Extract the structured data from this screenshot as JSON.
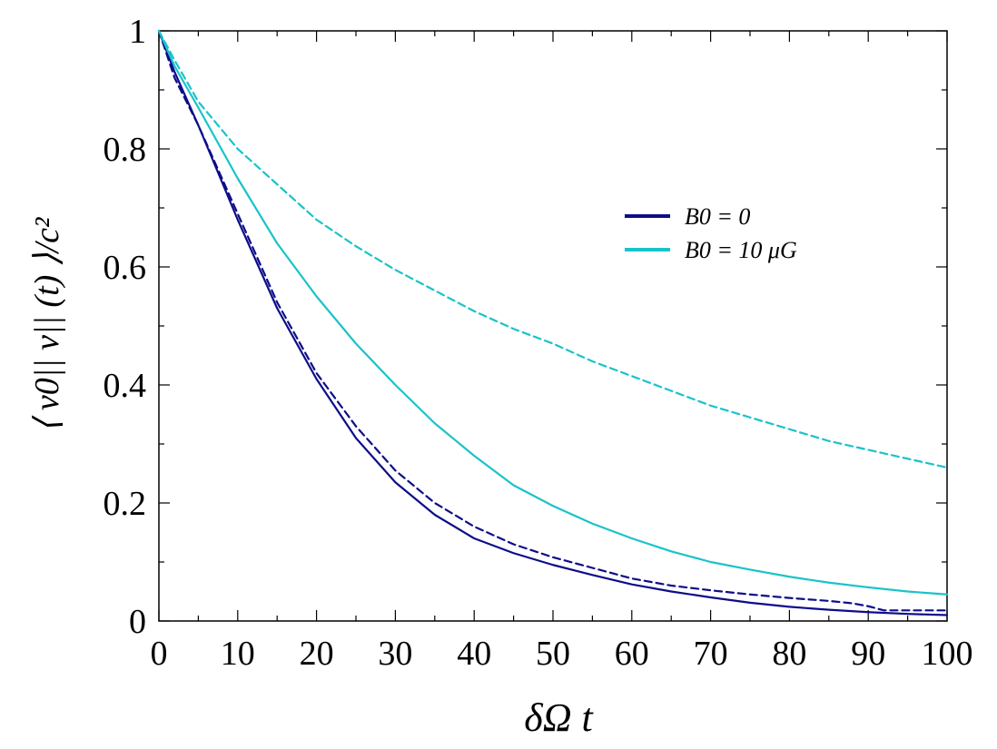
{
  "chart_data": {
    "type": "line",
    "xlabel": "δΩ t",
    "ylabel": "⟨ v0|| v|| (t) ⟩/c²",
    "xlim": [
      0,
      100
    ],
    "ylim": [
      0,
      1
    ],
    "xticks": [
      0,
      10,
      20,
      30,
      40,
      50,
      60,
      70,
      80,
      90,
      100
    ],
    "yticks": [
      0,
      0.2,
      0.4,
      0.6,
      0.8,
      1
    ],
    "ytick_labels": [
      "0",
      "0.2",
      "0.4",
      "0.6",
      "0.8",
      "1"
    ],
    "grid": false,
    "legend_position": "upper-right",
    "legend": [
      {
        "label": "B0 = 0",
        "color": "#0d0d8a"
      },
      {
        "label": "B0 = 10 μG",
        "color": "#19c3c9"
      }
    ],
    "series": [
      {
        "legend_label": "B0 = 0",
        "style": "solid",
        "color": "#0d0d8a",
        "x": [
          0,
          2,
          5,
          10,
          15,
          20,
          25,
          30,
          35,
          40,
          45,
          50,
          55,
          60,
          65,
          70,
          75,
          80,
          85,
          90,
          95,
          100
        ],
        "y": [
          1.0,
          0.93,
          0.84,
          0.68,
          0.53,
          0.41,
          0.31,
          0.235,
          0.18,
          0.14,
          0.115,
          0.095,
          0.078,
          0.062,
          0.05,
          0.04,
          0.031,
          0.024,
          0.019,
          0.015,
          0.012,
          0.01
        ]
      },
      {
        "legend_label": "B0 = 0",
        "style": "dashed",
        "color": "#0d0d8a",
        "x": [
          0,
          2,
          5,
          10,
          15,
          20,
          25,
          30,
          35,
          40,
          45,
          50,
          55,
          60,
          65,
          70,
          75,
          80,
          85,
          88,
          90,
          92,
          95,
          100
        ],
        "y": [
          1.0,
          0.92,
          0.84,
          0.69,
          0.54,
          0.42,
          0.33,
          0.255,
          0.2,
          0.16,
          0.13,
          0.108,
          0.09,
          0.072,
          0.06,
          0.052,
          0.045,
          0.039,
          0.034,
          0.03,
          0.025,
          0.018,
          0.018,
          0.018
        ]
      },
      {
        "legend_label": "B0 = 10 μG",
        "style": "solid",
        "color": "#19c3c9",
        "x": [
          0,
          2,
          5,
          10,
          15,
          20,
          25,
          30,
          35,
          40,
          45,
          50,
          55,
          60,
          65,
          70,
          75,
          80,
          85,
          90,
          95,
          100
        ],
        "y": [
          1.0,
          0.94,
          0.87,
          0.75,
          0.64,
          0.55,
          0.47,
          0.4,
          0.335,
          0.28,
          0.23,
          0.195,
          0.165,
          0.14,
          0.118,
          0.1,
          0.087,
          0.075,
          0.065,
          0.057,
          0.05,
          0.045
        ]
      },
      {
        "legend_label": "B0 = 10 μG",
        "style": "dashed",
        "color": "#19c3c9",
        "x": [
          0,
          2,
          5,
          10,
          15,
          20,
          25,
          30,
          35,
          40,
          45,
          50,
          55,
          60,
          65,
          70,
          75,
          80,
          85,
          90,
          95,
          100
        ],
        "y": [
          1.0,
          0.95,
          0.88,
          0.8,
          0.74,
          0.68,
          0.635,
          0.595,
          0.56,
          0.525,
          0.495,
          0.47,
          0.44,
          0.415,
          0.39,
          0.365,
          0.345,
          0.325,
          0.305,
          0.29,
          0.275,
          0.26
        ]
      }
    ]
  }
}
